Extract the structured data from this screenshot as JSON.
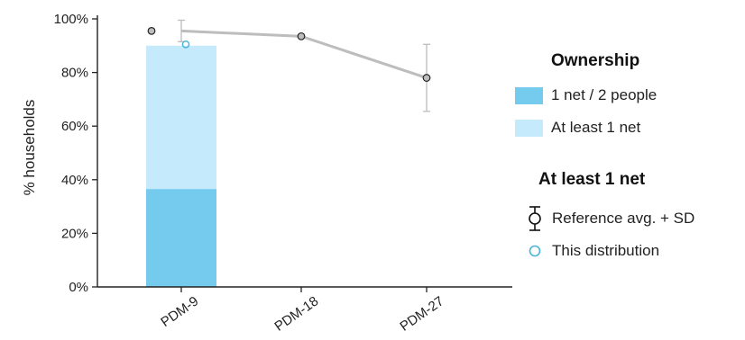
{
  "chart_data": {
    "type": "bar",
    "categories": [
      "PDM-9",
      "PDM-18",
      "PDM-27"
    ],
    "ylabel": "% households",
    "xlabel": "",
    "ylim": [
      0,
      100
    ],
    "yticks": [
      "0%",
      "20%",
      "40%",
      "60%",
      "80%",
      "100%"
    ],
    "ytick_values": [
      0,
      20,
      40,
      60,
      80,
      100
    ],
    "grid": false,
    "legend_position": "right",
    "series": [
      {
        "name": "1 net / 2 people",
        "kind": "bar",
        "color": "#75cbee",
        "values": [
          36.5,
          null,
          null
        ]
      },
      {
        "name": "At least 1 net",
        "kind": "bar",
        "color": "#c5eafc",
        "values": [
          90,
          null,
          null
        ]
      },
      {
        "name": "Reference avg. + SD",
        "kind": "line-errorbar",
        "color": "#bdbdbd",
        "values": [
          95.5,
          93.5,
          78
        ],
        "sd": [
          4,
          0,
          12.5
        ]
      },
      {
        "name": "This distribution",
        "kind": "point",
        "color": "#4cb3d8",
        "values": [
          90.5,
          null,
          null
        ]
      }
    ]
  },
  "legend": {
    "ownership_title": "Ownership",
    "ownership_items": [
      {
        "label": "1 net / 2 people",
        "color": "#75cbee"
      },
      {
        "label": "At least 1 net",
        "color": "#c5eafc"
      }
    ],
    "atleast_title": "At least 1 net",
    "atleast_items": [
      {
        "label": "Reference avg. + SD",
        "icon": "errorbar-circle-icon"
      },
      {
        "label": "This distribution",
        "icon": "hollow-circle-icon"
      }
    ]
  }
}
